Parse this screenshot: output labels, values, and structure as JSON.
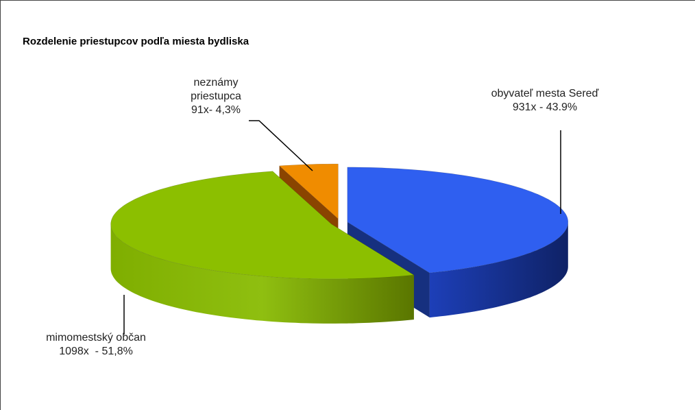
{
  "chart_data": {
    "type": "pie3d",
    "title": "Rozdelenie priestupcov podľa miesta bydliska",
    "categories": [
      "obyvateľ mesta Sereď",
      "mimomestský občan",
      "neznámy priestupca"
    ],
    "values": [
      931,
      1098,
      91
    ],
    "value_labels": [
      "931x - 43.9%",
      "1098x  - 51,8%",
      "91x- 4,3%"
    ],
    "colors": [
      "#2f5ff0",
      "#8cbf00",
      "#f08c00"
    ]
  }
}
